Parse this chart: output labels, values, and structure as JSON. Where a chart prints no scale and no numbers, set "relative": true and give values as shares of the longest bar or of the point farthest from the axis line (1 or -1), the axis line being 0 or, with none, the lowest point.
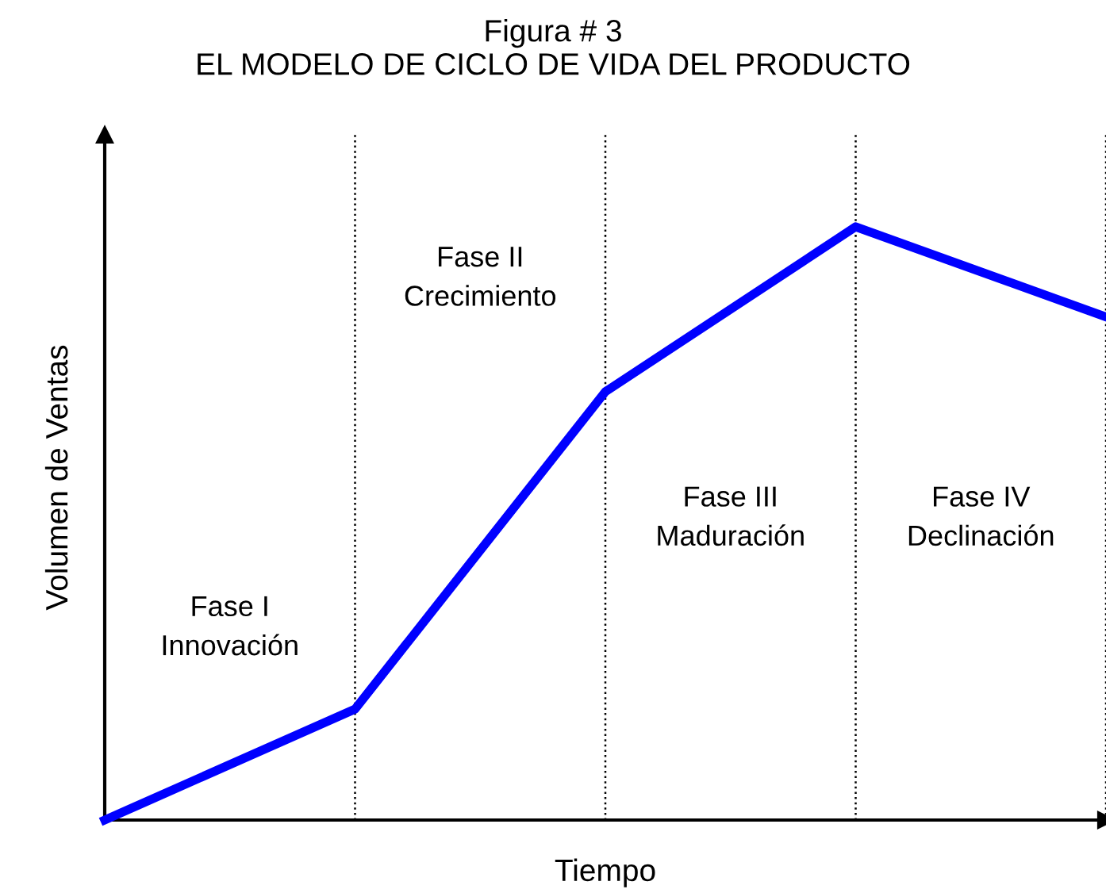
{
  "chart_data": {
    "type": "line",
    "title": "Figura # 3",
    "subtitle": "EL MODELO DE CICLO DE VIDA DEL PRODUCTO",
    "xlabel": "Tiempo",
    "ylabel": "Volumen de Ventas",
    "categories": [
      null,
      null,
      null,
      null,
      null
    ],
    "relative": true,
    "series": [
      {
        "color": "#0000ff",
        "values": [
          0,
          0.187,
          0.722,
          1,
          0.848
        ]
      }
    ],
    "annotations": [
      "Fase I\nInnovación",
      "Fase II\nCrecimiento",
      "Fase III\nMaduración",
      "Fase IV\nDeclinación"
    ],
    "grid": "x",
    "marker": "none",
    "line_style": "solid"
  }
}
